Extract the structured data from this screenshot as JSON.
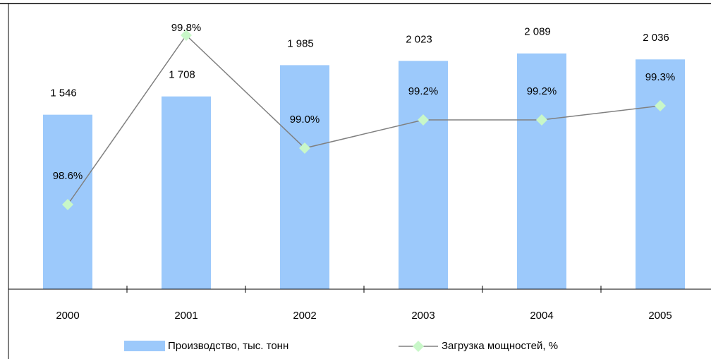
{
  "chart_data": {
    "type": "bar-line",
    "categories": [
      "2000",
      "2001",
      "2002",
      "2003",
      "2004",
      "2005"
    ],
    "series": [
      {
        "name": "Производство, тыс. тонн",
        "type": "bar",
        "axis": "y",
        "color": "#9cc9fb",
        "values": [
          1546,
          1708,
          1985,
          2023,
          2089,
          2036
        ],
        "value_labels": [
          "1 546",
          "1 708",
          "1 985",
          "2 023",
          "2 089",
          "2 036"
        ]
      },
      {
        "name": "Загрузка мощностей, %",
        "type": "line",
        "axis": "y2",
        "color": "#808080",
        "marker_color": "#c8f7c8",
        "values": [
          98.6,
          99.8,
          99.0,
          99.2,
          99.2,
          99.3
        ],
        "value_labels": [
          "98.6%",
          "99.8%",
          "99.0%",
          "99.2%",
          "99.2%",
          "99.3%"
        ]
      }
    ],
    "ylim": [
      0,
      2500
    ],
    "y2lim": [
      98,
      100
    ],
    "legend": "bottom"
  }
}
